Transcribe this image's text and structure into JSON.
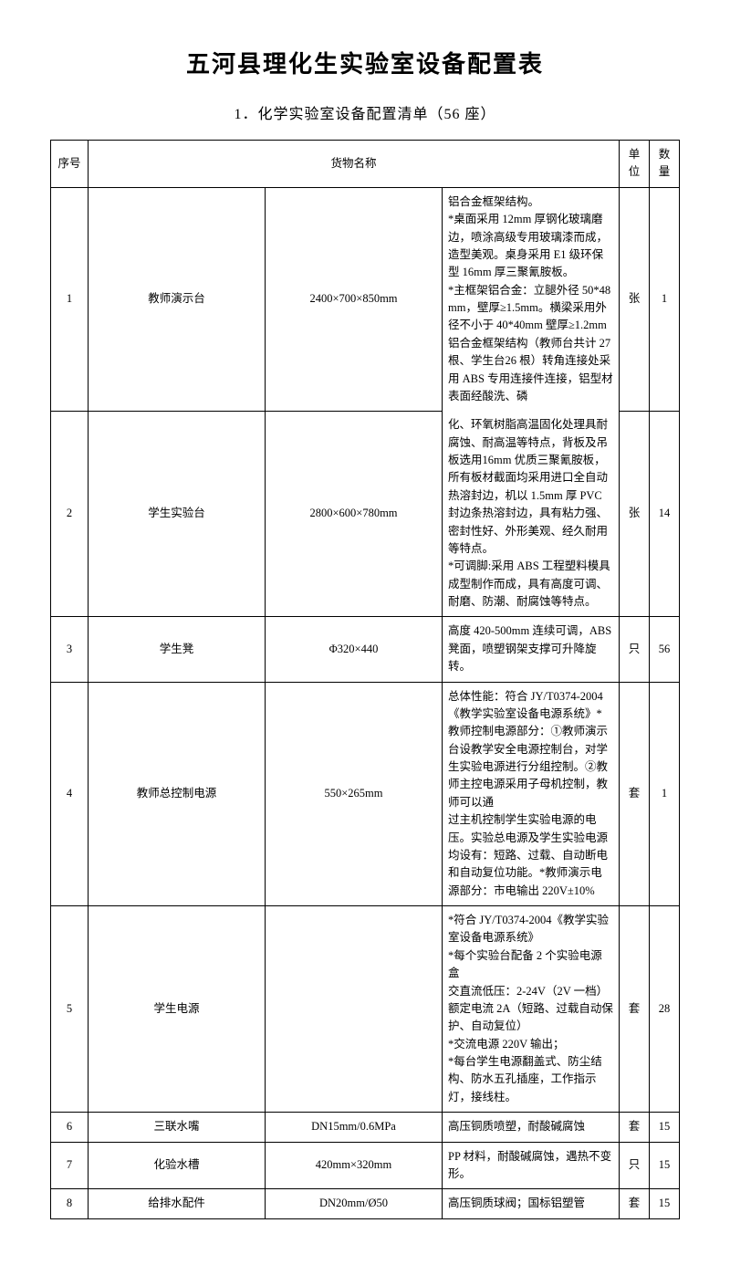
{
  "title": "五河县理化生实验室设备配置表",
  "subtitle": "1．化学实验室设备配置清单（56 座）",
  "headers": {
    "idx": "序号",
    "goods": "货物名称",
    "unit": "单位",
    "qty": "数量"
  },
  "rows": [
    {
      "idx": "1",
      "name": "教师演示台",
      "spec": "2400×700×850mm",
      "desc_top": "铝合金框架结构。\n*桌面采用 12mm 厚钢化玻璃磨边，喷涂高级专用玻璃漆而成，造型美观。桌身采用 E1 级环保型 16mm 厚三聚氰胺板。\n*主框架铝合金：立腿外径 50*48mm，壁厚≥1.5mm。横梁采用外径不小于 40*40mm 壁厚≥1.2mm 铝合金框架结构（教师台共计 27 根、学生台26 根）转角连接处采用 ABS 专用连接件连接，铝型材表面经酸洗、磷",
      "unit": "张",
      "qty": "1"
    },
    {
      "idx": "2",
      "name": "学生实验台",
      "spec": "2800×600×780mm",
      "desc_bot": "化、环氧树脂高温固化处理具耐腐蚀、耐高温等特点，背板及吊板选用16mm 优质三聚氰胺板，所有板材截面均采用进口全自动热溶封边，机以 1.5mm 厚 PVC 封边条热溶封边，具有粘力强、密封性好、外形美观、经久耐用等特点。\n*可调脚:采用 ABS 工程塑料模具成型制作而成，具有高度可调、耐磨、防潮、耐腐蚀等特点。",
      "unit": "张",
      "qty": "14"
    },
    {
      "idx": "3",
      "name": "学生凳",
      "spec": "Φ320×440",
      "desc": "高度 420-500mm 连续可调，ABS 凳面，喷塑钢架支撑可升降旋转。",
      "unit": "只",
      "qty": "56"
    },
    {
      "idx": "4",
      "name": "教师总控制电源",
      "spec": "550×265mm",
      "desc": "总体性能：符合 JY/T0374-2004《教学实验室设备电源系统》*教师控制电源部分：①教师演示台设教学安全电源控制台，对学生实验电源进行分组控制。②教师主控电源采用子母机控制，教师可以通\n过主机控制学生实验电源的电压。实验总电源及学生实验电源均设有：短路、过载、自动断电和自动复位功能。*教师演示电源部分：市电输出 220V±10%",
      "unit": "套",
      "qty": "1"
    },
    {
      "idx": "5",
      "name": "学生电源",
      "spec": "",
      "desc": "*符合 JY/T0374-2004《教学实验室设备电源系统》\n*每个实验台配备 2 个实验电源盒\n交直流低压：2-24V（2V 一档）额定电流 2A（短路、过载自动保护、自动复位）　　　　　　　　　　　　　　　　　　　　　　　　*交流电源 220V 输出；\n*每台学生电源翻盖式、防尘结构、防水五孔插座，工作指示灯，接线柱。",
      "unit": "套",
      "qty": "28"
    },
    {
      "idx": "6",
      "name": "三联水嘴",
      "spec": "DN15mm/0.6MPa",
      "desc": "高压铜质喷塑，耐酸碱腐蚀",
      "unit": "套",
      "qty": "15"
    },
    {
      "idx": "7",
      "name": "化验水槽",
      "spec": "420mm×320mm",
      "desc": "PP 材料，耐酸碱腐蚀，遇热不变形。",
      "unit": "只",
      "qty": "15"
    },
    {
      "idx": "8",
      "name": "给排水配件",
      "spec": "DN20mm/Ø50",
      "desc": "高压铜质球阀；国标铝塑管",
      "unit": "套",
      "qty": "15"
    }
  ]
}
